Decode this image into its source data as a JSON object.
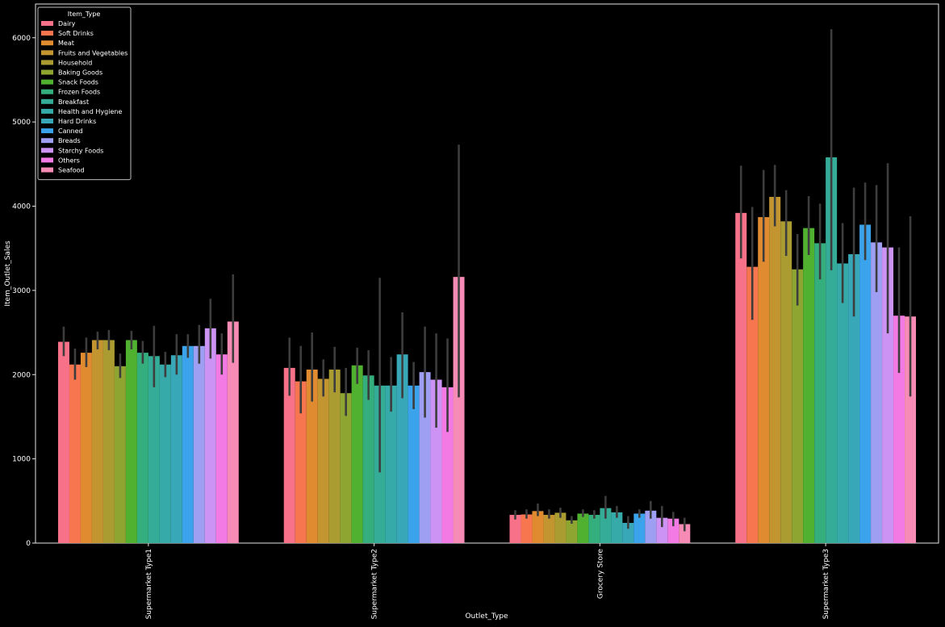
{
  "chart_data": {
    "type": "bar",
    "xlabel": "Outlet_Type",
    "ylabel": "Item_Outlet_Sales",
    "ylim": [
      0,
      6400
    ],
    "yticks": [
      0,
      1000,
      2000,
      3000,
      4000,
      5000,
      6000
    ],
    "legend_title": "Item_Type",
    "legend_position": "top-left",
    "grid": false,
    "background": "#000000",
    "categories": [
      "Supermarket Type1",
      "Supermarket Type2",
      "Grocery Store",
      "Supermarket Type3"
    ],
    "series": [
      {
        "name": "Dairy",
        "color": "#f77189",
        "values": [
          2390,
          2080,
          335,
          3920
        ],
        "ci": [
          [
            2220,
            2570
          ],
          [
            1750,
            2440
          ],
          [
            280,
            390
          ],
          [
            3380,
            4480
          ]
        ]
      },
      {
        "name": "Soft Drinks",
        "color": "#f7754f",
        "values": [
          2120,
          1920,
          340,
          3280
        ],
        "ci": [
          [
            1940,
            2310
          ],
          [
            1540,
            2340
          ],
          [
            290,
            400
          ],
          [
            2650,
            3990
          ]
        ]
      },
      {
        "name": "Meat",
        "color": "#e08b30",
        "values": [
          2260,
          2060,
          380,
          3870
        ],
        "ci": [
          [
            2090,
            2440
          ],
          [
            1680,
            2500
          ],
          [
            320,
            470
          ],
          [
            3340,
            4430
          ]
        ]
      },
      {
        "name": "Fruits and Vegetables",
        "color": "#c39531",
        "values": [
          2410,
          1950,
          335,
          4110
        ],
        "ci": [
          [
            2300,
            2510
          ],
          [
            1740,
            2180
          ],
          [
            290,
            400
          ],
          [
            3760,
            4490
          ]
        ]
      },
      {
        "name": "Household",
        "color": "#aa9c31",
        "values": [
          2410,
          2060,
          360,
          3820
        ],
        "ci": [
          [
            2290,
            2530
          ],
          [
            1790,
            2330
          ],
          [
            300,
            420
          ],
          [
            3410,
            4190
          ]
        ]
      },
      {
        "name": "Baking Goods",
        "color": "#8ea531",
        "values": [
          2100,
          1780,
          270,
          3250
        ],
        "ci": [
          [
            1960,
            2250
          ],
          [
            1510,
            2080
          ],
          [
            230,
            320
          ],
          [
            2820,
            3670
          ]
        ]
      },
      {
        "name": "Snack Foods",
        "color": "#50b131",
        "values": [
          2410,
          2110,
          350,
          3740
        ],
        "ci": [
          [
            2300,
            2520
          ],
          [
            1890,
            2320
          ],
          [
            310,
            400
          ],
          [
            3420,
            4120
          ]
        ]
      },
      {
        "name": "Frozen Foods",
        "color": "#34ae7d",
        "values": [
          2260,
          1990,
          335,
          3560
        ],
        "ci": [
          [
            2130,
            2400
          ],
          [
            1700,
            2290
          ],
          [
            290,
            390
          ],
          [
            3130,
            4030
          ]
        ]
      },
      {
        "name": "Breakfast",
        "color": "#35ac97",
        "values": [
          2220,
          1870,
          415,
          4580
        ],
        "ci": [
          [
            1850,
            2580
          ],
          [
            840,
            3150
          ],
          [
            290,
            560
          ],
          [
            3240,
            6100
          ]
        ]
      },
      {
        "name": "Health and Hygiene",
        "color": "#36aaa8",
        "values": [
          2120,
          1870,
          365,
          3320
        ],
        "ci": [
          [
            1970,
            2270
          ],
          [
            1560,
            2210
          ],
          [
            300,
            440
          ],
          [
            2850,
            3800
          ]
        ]
      },
      {
        "name": "Hard Drinks",
        "color": "#38a7b8",
        "values": [
          2230,
          2240,
          240,
          3430
        ],
        "ci": [
          [
            2000,
            2480
          ],
          [
            1720,
            2740
          ],
          [
            170,
            320
          ],
          [
            2690,
            4220
          ]
        ]
      },
      {
        "name": "Canned",
        "color": "#3ba3ec",
        "values": [
          2340,
          1870,
          350,
          3780
        ],
        "ci": [
          [
            2200,
            2480
          ],
          [
            1590,
            2150
          ],
          [
            300,
            400
          ],
          [
            3360,
            4280
          ]
        ]
      },
      {
        "name": "Breads",
        "color": "#9e9ef2",
        "values": [
          2340,
          2030,
          385,
          3570
        ],
        "ci": [
          [
            2130,
            2590
          ],
          [
            1490,
            2570
          ],
          [
            290,
            500
          ],
          [
            2980,
            4250
          ]
        ]
      },
      {
        "name": "Starchy Foods",
        "color": "#cd93f4",
        "values": [
          2550,
          1940,
          300,
          3510
        ],
        "ci": [
          [
            2190,
            2900
          ],
          [
            1370,
            2490
          ],
          [
            190,
            440
          ],
          [
            2490,
            4510
          ]
        ]
      },
      {
        "name": "Others",
        "color": "#f37ae5",
        "values": [
          2240,
          1850,
          290,
          2700
        ],
        "ci": [
          [
            2000,
            2490
          ],
          [
            1320,
            2430
          ],
          [
            200,
            370
          ],
          [
            2020,
            3510
          ]
        ]
      },
      {
        "name": "Seafood",
        "color": "#f68cb5",
        "values": [
          2630,
          3160,
          225,
          2690
        ],
        "ci": [
          [
            2140,
            3190
          ],
          [
            1730,
            4730
          ],
          [
            140,
            300
          ],
          [
            1740,
            3880
          ]
        ]
      }
    ]
  }
}
